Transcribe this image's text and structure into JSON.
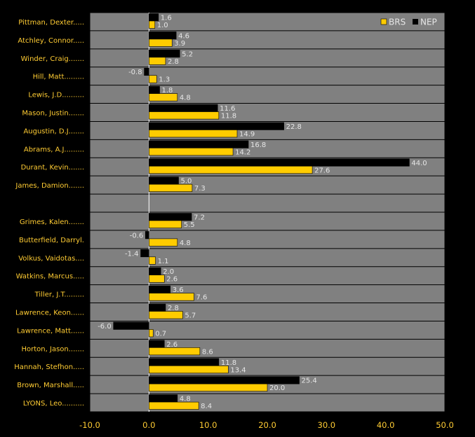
{
  "chart_data": {
    "type": "bar",
    "orientation": "horizontal",
    "categories": [
      "Pittman, Dexter.....",
      "Atchley, Connor.....",
      "Winder, Craig.......",
      "Hill, Matt.........",
      "Lewis, J.D..........",
      "Mason, Justin.......",
      "Augustin, D.J.......",
      "Abrams, A.J.........",
      "Durant, Kevin.......",
      "James, Damion.......",
      "",
      "Grimes, Kalen.......",
      "Butterfield, Darryl.",
      "Volkus, Vaidotas....",
      "Watkins, Marcus.....",
      "Tiller, J.T.........",
      "Lawrence, Keon......",
      "Lawrence, Matt......",
      "Horton, Jason.......",
      "Hannah, Stefhon.....",
      "Brown, Marshall.....",
      "LYONS, Leo.........."
    ],
    "series": [
      {
        "name": "NEP",
        "color": "#000000",
        "values": [
          1.6,
          4.6,
          5.2,
          -0.8,
          1.8,
          11.6,
          22.8,
          16.8,
          44.0,
          5.0,
          null,
          7.2,
          -0.6,
          -1.4,
          2.0,
          3.6,
          2.8,
          -6.0,
          2.6,
          11.8,
          25.4,
          4.8
        ],
        "labels": [
          "1.6",
          "4.6",
          "5.2",
          "-0.8",
          "1.8",
          "11.6",
          "22.8",
          "16.8",
          "44.0",
          "5.0",
          "",
          "7.2",
          "-0.6",
          "-1.4",
          "2.0",
          "3.6",
          "2.8",
          "-6.0",
          "2.6",
          "11.8",
          "25.4",
          "4.8"
        ]
      },
      {
        "name": "BRS",
        "color": "#ffcc00",
        "values": [
          1.0,
          3.9,
          2.8,
          1.3,
          4.8,
          11.8,
          14.9,
          14.2,
          27.6,
          7.3,
          null,
          5.5,
          4.8,
          1.1,
          2.6,
          7.6,
          5.7,
          0.7,
          8.6,
          13.4,
          20.0,
          8.4
        ],
        "labels": [
          "1.0",
          "3.9",
          "2.8",
          "1.3",
          "4.8",
          "11.8",
          "14.9",
          "14.2",
          "27.6",
          "7.3",
          "",
          "5.5",
          "4.8",
          "1.1",
          "2.6",
          "7.6",
          "5.7",
          "0.7",
          "8.6",
          "13.4",
          "20.0",
          "8.4"
        ]
      }
    ],
    "xlim": [
      -10,
      50
    ],
    "xticks": [
      "-10.0",
      "0.0",
      "10.0",
      "20.0",
      "30.0",
      "40.0",
      "50.0"
    ],
    "xtick_values": [
      -10,
      0,
      10,
      20,
      30,
      40,
      50
    ],
    "legend": {
      "placement": "top-right",
      "entries": [
        "BRS",
        "NEP"
      ]
    },
    "grid": true,
    "plot_background": "#808080",
    "title": "",
    "xlabel": "",
    "ylabel": ""
  }
}
